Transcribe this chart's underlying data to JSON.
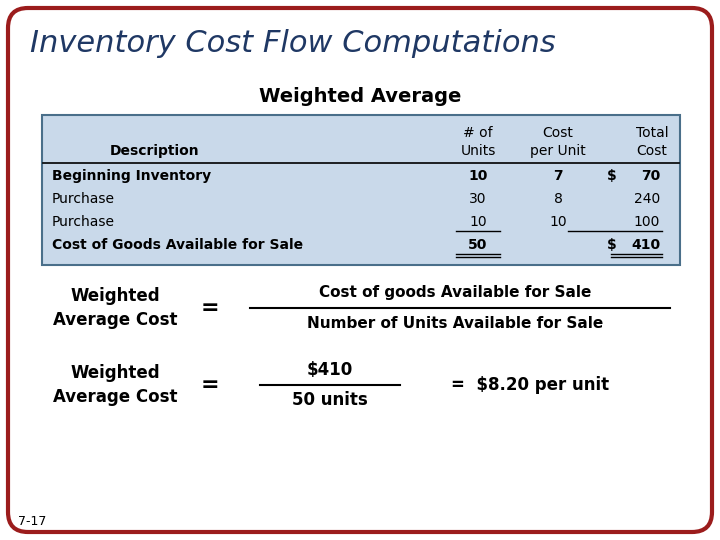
{
  "title": "Inventory Cost Flow Computations",
  "subtitle": "Weighted Average",
  "title_color": "#1f3864",
  "background_color": "#ffffff",
  "border_color": "#9b1c1c",
  "table_bg_color": "#c9d9ea",
  "table_border_color": "#4a6f8a",
  "table_rows": [
    [
      "Beginning Inventory",
      "10",
      "7",
      "$",
      "70"
    ],
    [
      "Purchase",
      "30",
      "8",
      "",
      "240"
    ],
    [
      "Purchase",
      "10",
      "10",
      "",
      "100"
    ],
    [
      "Cost of Goods Available for Sale",
      "50",
      "",
      "$",
      "410"
    ]
  ],
  "formula1_left": "Weighted\nAverage Cost",
  "formula1_equals": "=",
  "formula1_numerator": "Cost of goods Available for Sale",
  "formula1_denominator": "Number of Units Available for Sale",
  "formula2_left": "Weighted\nAverage Cost",
  "formula2_equals": "=",
  "formula2_numerator": "$410",
  "formula2_denominator": "50 units",
  "formula2_result": "=  $8.20 per unit",
  "slide_number": "7-17"
}
